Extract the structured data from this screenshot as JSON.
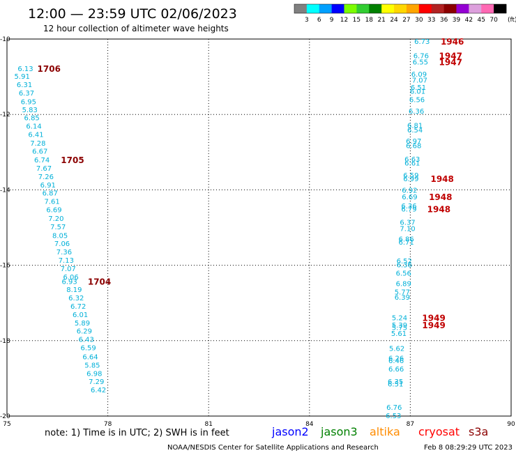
{
  "header": {
    "title": "12:00 — 23:59 UTC 02/06/2023",
    "subtitle": "12 hour collection of altimeter wave heights"
  },
  "colorbar": {
    "labels": [
      "3",
      "6",
      "9",
      "12",
      "15",
      "18",
      "21",
      "24",
      "27",
      "30",
      "33",
      "36",
      "39",
      "42",
      "45",
      "70"
    ],
    "unit": "(ft)",
    "colors": [
      "#808080",
      "#00ffff",
      "#00a0ff",
      "#0000ff",
      "#7cfc00",
      "#32cd32",
      "#008000",
      "#ffff00",
      "#ffd700",
      "#ffa500",
      "#ff0000",
      "#b22222",
      "#8b0000",
      "#9400d3",
      "#dda0dd",
      "#ff69b4",
      "#000000"
    ]
  },
  "footer": {
    "note": "note:  1) Time is in UTC; 2) SWH is in feet",
    "credit": "NOAA/NESDIS Center for Satellite Applications and Research",
    "timestamp": "Feb  8 08:29:29 UTC 2023"
  },
  "satellites": [
    {
      "name": "jason2",
      "color": "#0000ff"
    },
    {
      "name": "jason3",
      "color": "#008000"
    },
    {
      "name": "altika",
      "color": "#ff8c00"
    },
    {
      "name": "cryosat",
      "color": "#ff0000"
    },
    {
      "name": "s3a",
      "color": "#8b0000"
    }
  ],
  "chart_data": {
    "type": "scatter",
    "xlim": [
      75,
      90
    ],
    "ylim": [
      -20,
      -10
    ],
    "x_ticks": [
      "75",
      "78",
      "81",
      "84",
      "87",
      "90"
    ],
    "y_ticks": [
      "-10",
      "-12",
      "-14",
      "-16",
      "-18",
      "-20"
    ],
    "grid": true,
    "value_color": "#00b0d8",
    "value_color_dark": "#00c0e0",
    "tracks": [
      {
        "name": "left",
        "values": [
          {
            "x": 75.55,
            "y": -10.78,
            "v": "6.13"
          },
          {
            "x": 75.45,
            "y": -10.98,
            "v": "5.91"
          },
          {
            "x": 75.52,
            "y": -11.2,
            "v": "6.31"
          },
          {
            "x": 75.58,
            "y": -11.42,
            "v": "6.37"
          },
          {
            "x": 75.64,
            "y": -11.65,
            "v": "6.95"
          },
          {
            "x": 75.68,
            "y": -11.87,
            "v": "5.83"
          },
          {
            "x": 75.74,
            "y": -12.08,
            "v": "6.85"
          },
          {
            "x": 75.8,
            "y": -12.3,
            "v": "6.14"
          },
          {
            "x": 75.86,
            "y": -12.52,
            "v": "6.41"
          },
          {
            "x": 75.92,
            "y": -12.75,
            "v": "7.28"
          },
          {
            "x": 75.98,
            "y": -12.97,
            "v": "6.67"
          },
          {
            "x": 76.04,
            "y": -13.2,
            "v": "6.74"
          },
          {
            "x": 76.1,
            "y": -13.42,
            "v": "7.67"
          },
          {
            "x": 76.16,
            "y": -13.64,
            "v": "7.26"
          },
          {
            "x": 76.22,
            "y": -13.86,
            "v": "6.91"
          },
          {
            "x": 76.28,
            "y": -14.08,
            "v": "6.87"
          },
          {
            "x": 76.34,
            "y": -14.3,
            "v": "7.61"
          },
          {
            "x": 76.4,
            "y": -14.52,
            "v": "6.69"
          },
          {
            "x": 76.46,
            "y": -14.75,
            "v": "7.20"
          },
          {
            "x": 76.52,
            "y": -14.97,
            "v": "7.57"
          },
          {
            "x": 76.58,
            "y": -15.2,
            "v": "8.05"
          },
          {
            "x": 76.64,
            "y": -15.42,
            "v": "7.06"
          },
          {
            "x": 76.7,
            "y": -15.64,
            "v": "7.36"
          },
          {
            "x": 76.76,
            "y": -15.86,
            "v": "7.13"
          },
          {
            "x": 76.82,
            "y": -16.08,
            "v": "7.07"
          },
          {
            "x": 76.9,
            "y": -16.3,
            "v": "6.06"
          },
          {
            "x": 76.86,
            "y": -16.42,
            "v": "6.93"
          },
          {
            "x": 77.0,
            "y": -16.64,
            "v": "8.19"
          },
          {
            "x": 77.06,
            "y": -16.86,
            "v": "6.32"
          },
          {
            "x": 77.12,
            "y": -17.08,
            "v": "6.72"
          },
          {
            "x": 77.18,
            "y": -17.3,
            "v": "6.01"
          },
          {
            "x": 77.24,
            "y": -17.52,
            "v": "5.89"
          },
          {
            "x": 77.3,
            "y": -17.74,
            "v": "6.29"
          },
          {
            "x": 77.36,
            "y": -17.96,
            "v": "6.43"
          },
          {
            "x": 77.42,
            "y": -18.18,
            "v": "6.59"
          },
          {
            "x": 77.48,
            "y": -18.42,
            "v": "6.64"
          },
          {
            "x": 77.54,
            "y": -18.64,
            "v": "5.85"
          },
          {
            "x": 77.6,
            "y": -18.86,
            "v": "6.98"
          },
          {
            "x": 77.66,
            "y": -19.08,
            "v": "7.29"
          },
          {
            "x": 77.72,
            "y": -19.3,
            "v": "6.42"
          }
        ]
      },
      {
        "name": "right",
        "values": [
          {
            "x": 87.35,
            "y": -10.06,
            "v": "6.73"
          },
          {
            "x": 87.32,
            "y": -10.43,
            "v": "6.76"
          },
          {
            "x": 87.3,
            "y": -10.6,
            "v": "6.55"
          },
          {
            "x": 87.26,
            "y": -10.92,
            "v": "6.09"
          },
          {
            "x": 87.28,
            "y": -11.08,
            "v": "7.07"
          },
          {
            "x": 87.24,
            "y": -11.28,
            "v": "6.51"
          },
          {
            "x": 87.22,
            "y": -11.38,
            "v": "6.01"
          },
          {
            "x": 87.2,
            "y": -11.6,
            "v": "6.56"
          },
          {
            "x": 87.18,
            "y": -11.9,
            "v": "6.36"
          },
          {
            "x": 87.14,
            "y": -12.28,
            "v": "6.81"
          },
          {
            "x": 87.14,
            "y": -12.4,
            "v": "6.54"
          },
          {
            "x": 87.1,
            "y": -12.7,
            "v": "6.97"
          },
          {
            "x": 87.1,
            "y": -12.82,
            "v": "6.68"
          },
          {
            "x": 87.06,
            "y": -13.18,
            "v": "6.63"
          },
          {
            "x": 87.06,
            "y": -13.28,
            "v": "6.61"
          },
          {
            "x": 87.02,
            "y": -13.6,
            "v": "6.59"
          },
          {
            "x": 87.02,
            "y": -13.7,
            "v": "6.99"
          },
          {
            "x": 86.98,
            "y": -14.0,
            "v": "6.92"
          },
          {
            "x": 86.98,
            "y": -14.18,
            "v": "6.69"
          },
          {
            "x": 86.96,
            "y": -14.42,
            "v": "6.36"
          },
          {
            "x": 86.96,
            "y": -14.5,
            "v": "6.79"
          },
          {
            "x": 86.92,
            "y": -14.85,
            "v": "6.37"
          },
          {
            "x": 86.92,
            "y": -15.02,
            "v": "7.10"
          },
          {
            "x": 86.88,
            "y": -15.3,
            "v": "6.86"
          },
          {
            "x": 86.88,
            "y": -15.38,
            "v": "6.71"
          },
          {
            "x": 86.82,
            "y": -15.88,
            "v": "6.52"
          },
          {
            "x": 86.82,
            "y": -15.98,
            "v": "6.36"
          },
          {
            "x": 86.8,
            "y": -16.2,
            "v": "6.56"
          },
          {
            "x": 86.8,
            "y": -16.48,
            "v": "6.89"
          },
          {
            "x": 86.76,
            "y": -16.7,
            "v": "5.77"
          },
          {
            "x": 86.76,
            "y": -16.84,
            "v": "6.39"
          },
          {
            "x": 86.68,
            "y": -17.38,
            "v": "5.24"
          },
          {
            "x": 86.68,
            "y": -17.58,
            "v": "5.39"
          },
          {
            "x": 86.68,
            "y": -17.64,
            "v": "5.75"
          },
          {
            "x": 86.66,
            "y": -17.8,
            "v": "5.61"
          },
          {
            "x": 86.6,
            "y": -18.2,
            "v": "5.62"
          },
          {
            "x": 86.58,
            "y": -18.46,
            "v": "6.26"
          },
          {
            "x": 86.58,
            "y": -18.52,
            "v": "6.46"
          },
          {
            "x": 86.58,
            "y": -18.74,
            "v": "6.66"
          },
          {
            "x": 86.56,
            "y": -19.08,
            "v": "6.35"
          },
          {
            "x": 86.56,
            "y": -19.14,
            "v": "6.51"
          },
          {
            "x": 86.52,
            "y": -19.76,
            "v": "6.76"
          },
          {
            "x": 86.5,
            "y": -19.98,
            "v": "6.53"
          }
        ]
      }
    ],
    "time_labels": [
      {
        "x": 76.25,
        "y": -10.78,
        "t": "1706",
        "dark": true
      },
      {
        "x": 76.95,
        "y": -13.2,
        "t": "1705",
        "dark": true
      },
      {
        "x": 77.75,
        "y": -16.42,
        "t": "1704",
        "dark": true
      },
      {
        "x": 88.25,
        "y": -10.06,
        "t": "1946",
        "dark": false
      },
      {
        "x": 88.2,
        "y": -10.43,
        "t": "1947",
        "dark": false
      },
      {
        "x": 88.2,
        "y": -10.6,
        "t": "1947",
        "dark": false
      },
      {
        "x": 87.95,
        "y": -13.7,
        "t": "1948",
        "dark": false
      },
      {
        "x": 87.9,
        "y": -14.18,
        "t": "1948",
        "dark": false
      },
      {
        "x": 87.85,
        "y": -14.5,
        "t": "1948",
        "dark": false
      },
      {
        "x": 87.7,
        "y": -17.38,
        "t": "1949",
        "dark": false
      },
      {
        "x": 87.7,
        "y": -17.58,
        "t": "1949",
        "dark": false
      }
    ]
  }
}
